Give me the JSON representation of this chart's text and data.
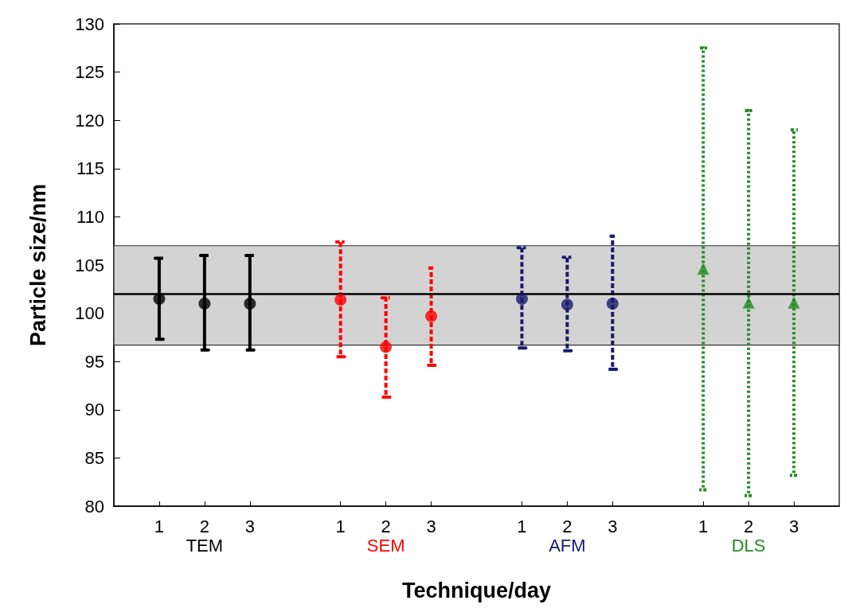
{
  "chart_data": {
    "type": "scatter",
    "xlabel": "Technique/day",
    "ylabel": "Particle size/nm",
    "categories": [
      null,
      "1",
      "2",
      "3",
      null,
      "1",
      "2",
      "3",
      null,
      "1",
      "2",
      "3",
      null,
      "1",
      "2",
      "3",
      null
    ],
    "series": [
      {
        "name": "TEM",
        "color": "#000000",
        "marker": "circle",
        "line_style": "solid",
        "values": [
          null,
          101.5,
          101.0,
          101.0,
          null,
          null,
          null,
          null,
          null,
          null,
          null,
          null,
          null,
          null,
          null,
          null,
          null
        ],
        "errors": [
          null,
          [
            97.3,
            105.7
          ],
          [
            96.2,
            106.0
          ],
          [
            96.2,
            106.0
          ],
          null,
          null,
          null,
          null,
          null,
          null,
          null,
          null,
          null,
          null,
          null,
          null,
          null
        ]
      },
      {
        "name": "SEM",
        "color": "#ff0000",
        "marker": "circle",
        "line_style": "dashed",
        "values": [
          null,
          null,
          null,
          null,
          null,
          101.4,
          96.5,
          99.7,
          null,
          null,
          null,
          null,
          null,
          null,
          null,
          null,
          null
        ],
        "errors": [
          null,
          null,
          null,
          null,
          null,
          [
            95.5,
            107.4
          ],
          [
            91.3,
            101.6
          ],
          [
            94.6,
            104.7
          ],
          null,
          null,
          null,
          null,
          null,
          null,
          null,
          null,
          null
        ]
      },
      {
        "name": "AFM",
        "color": "#1a1a6e",
        "marker": "circle",
        "line_style": "dashed",
        "values": [
          null,
          null,
          null,
          null,
          null,
          null,
          null,
          null,
          null,
          101.5,
          100.9,
          101.0,
          null,
          null,
          null,
          null,
          null
        ],
        "errors": [
          null,
          null,
          null,
          null,
          null,
          null,
          null,
          null,
          null,
          [
            96.4,
            106.8
          ],
          [
            96.1,
            105.8
          ],
          [
            94.2,
            108.0
          ],
          null,
          null,
          null,
          null,
          null
        ]
      },
      {
        "name": "DLS",
        "color": "#228b22",
        "marker": "triangle",
        "line_style": "dotted",
        "values": [
          null,
          null,
          null,
          null,
          null,
          null,
          null,
          null,
          null,
          null,
          null,
          null,
          null,
          104.6,
          101.1,
          101.1,
          null
        ],
        "errors": [
          null,
          null,
          null,
          null,
          null,
          null,
          null,
          null,
          null,
          null,
          null,
          null,
          null,
          [
            81.7,
            127.5
          ],
          [
            81.1,
            121.0
          ],
          [
            83.2,
            119.0
          ],
          null
        ]
      }
    ],
    "ylim": [
      80,
      130
    ],
    "yticks": [
      80,
      85,
      90,
      95,
      100,
      105,
      110,
      115,
      120,
      125,
      130
    ],
    "ref_lines": [
      {
        "axis": "y",
        "value": 102,
        "color": "#000000"
      }
    ],
    "bands": [
      {
        "axis": "y",
        "from": 96.7,
        "to": 107.0,
        "color": "#d3d3d3"
      }
    ],
    "grid": false,
    "legend": false
  }
}
